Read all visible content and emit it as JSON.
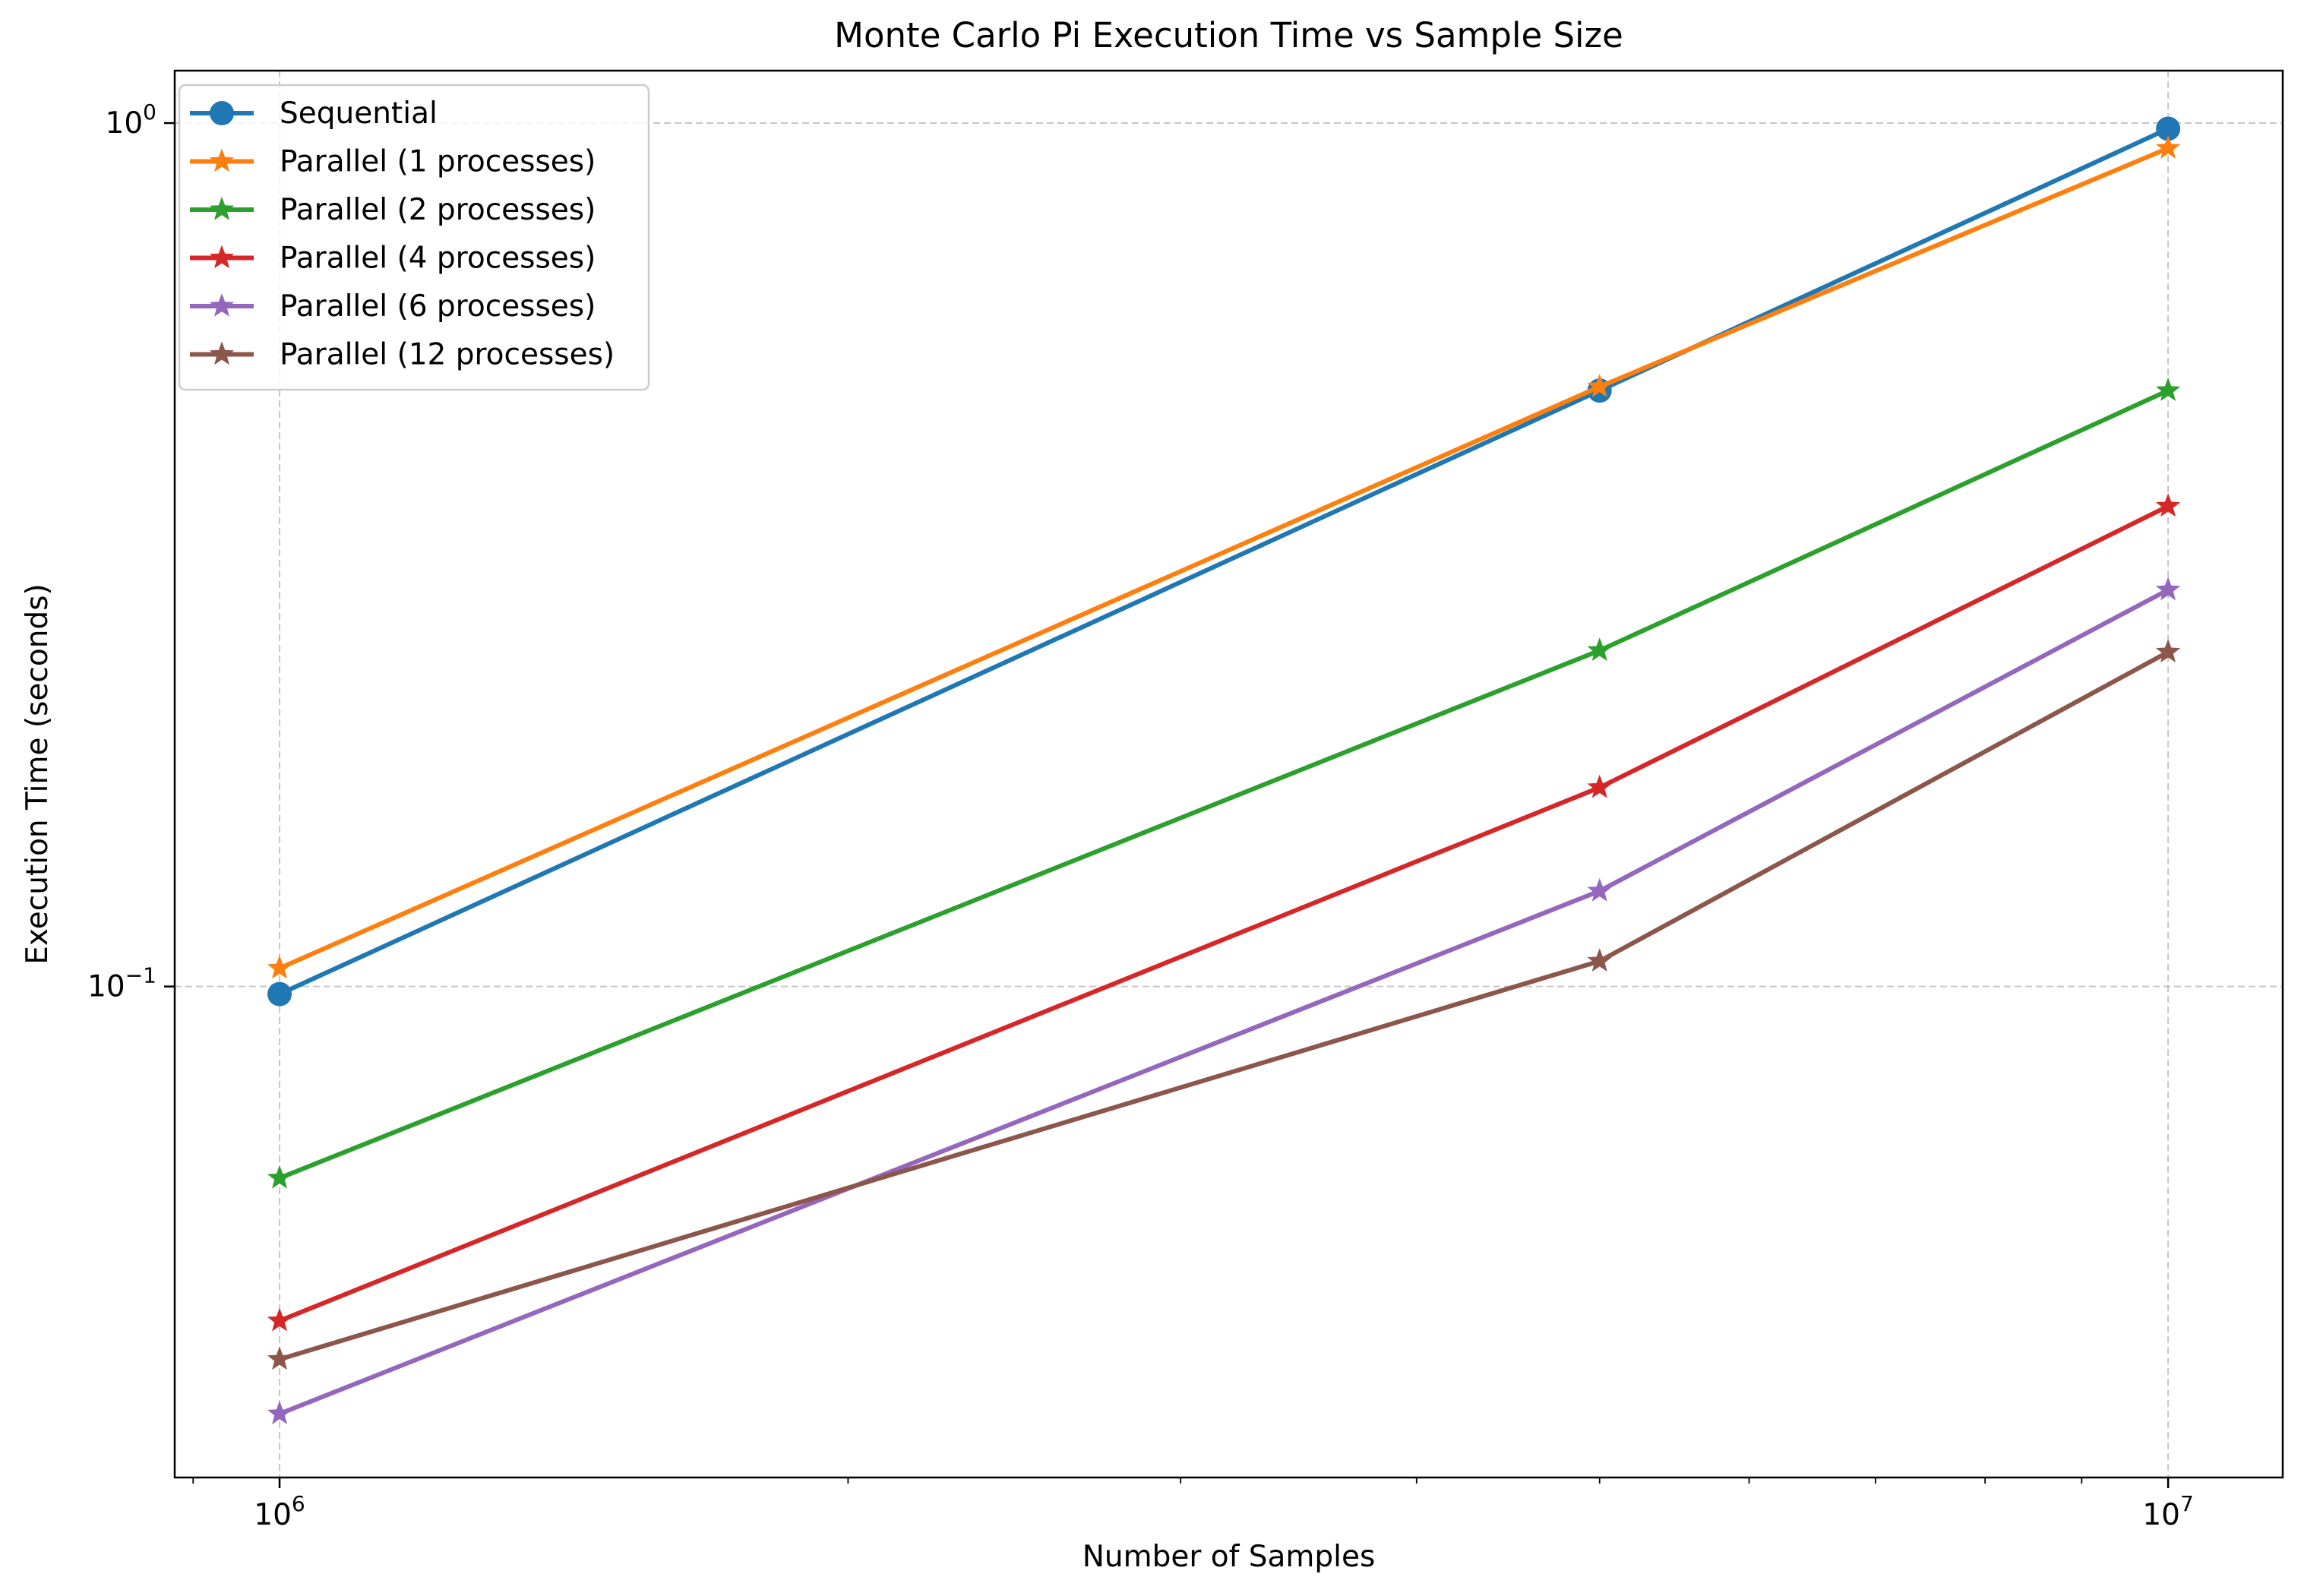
{
  "chart_data": {
    "type": "line",
    "title": "Monte Carlo Pi Execution Time vs Sample Size",
    "xlabel": "Number of Samples",
    "ylabel": "Execution Time (seconds)",
    "xscale": "log",
    "yscale": "log",
    "xlim": [
      880000,
      11500000
    ],
    "ylim": [
      0.027,
      1.15
    ],
    "grid": true,
    "legend_position": "upper left",
    "x": [
      1000000,
      5000000,
      10000000
    ],
    "x_ticks": [
      {
        "value": 1000000,
        "base": "10",
        "exp": "6"
      },
      {
        "value": 10000000,
        "base": "10",
        "exp": "7"
      }
    ],
    "y_ticks": [
      {
        "value": 0.1,
        "base": "10",
        "exp": "−1"
      },
      {
        "value": 1,
        "base": "10",
        "exp": "0"
      }
    ],
    "series": [
      {
        "name": "Sequential",
        "values": [
          0.098,
          0.49,
          0.985
        ],
        "color": "#1f77b4",
        "marker": "circle"
      },
      {
        "name": "Parallel (1 processes)",
        "values": [
          0.105,
          0.495,
          0.935
        ],
        "color": "#ff7f0e",
        "marker": "star"
      },
      {
        "name": "Parallel (2 processes)",
        "values": [
          0.06,
          0.245,
          0.49
        ],
        "color": "#2ca02c",
        "marker": "star"
      },
      {
        "name": "Parallel (4 processes)",
        "values": [
          0.041,
          0.17,
          0.36
        ],
        "color": "#d62728",
        "marker": "star"
      },
      {
        "name": "Parallel (6 processes)",
        "values": [
          0.032,
          0.129,
          0.288
        ],
        "color": "#9467bd",
        "marker": "star"
      },
      {
        "name": "Parallel (12 processes)",
        "values": [
          0.037,
          0.107,
          0.244
        ],
        "color": "#8c564b",
        "marker": "star"
      }
    ]
  }
}
